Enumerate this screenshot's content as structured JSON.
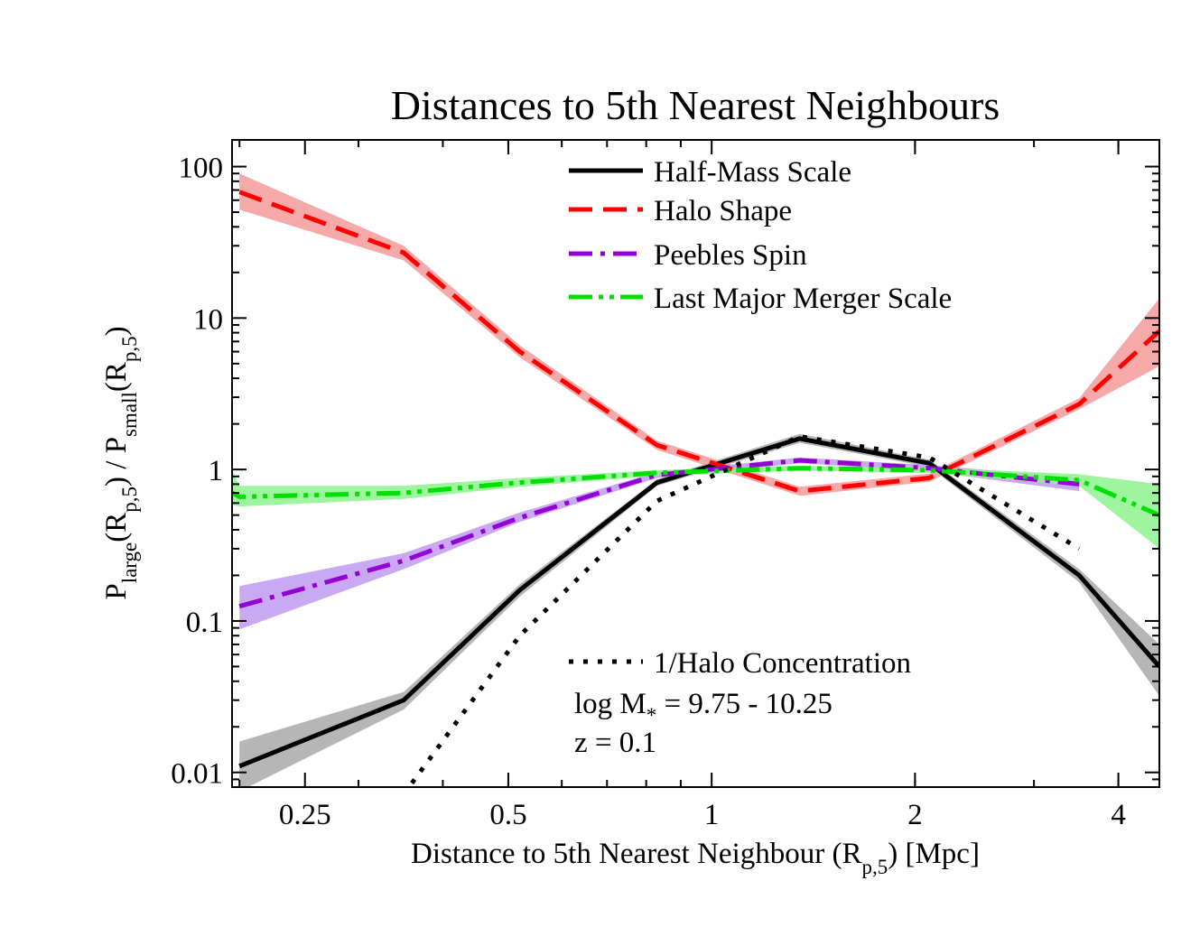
{
  "chart_data": {
    "type": "line",
    "title": "Distances to 5th Nearest Neighbours",
    "xlabel": {
      "main": "Distance to 5th Nearest Neighbour (R",
      "sub": "p,5",
      "tail": ") [Mpc]"
    },
    "ylabel": {
      "p1": "P",
      "sub1": "large",
      "p2": "(R",
      "sub2": "p,5",
      "p3": ") / P",
      "sub3": "small",
      "p4": "(R",
      "sub4": "p,5",
      "p5": ")"
    },
    "xscale": "log",
    "yscale": "log",
    "xlim": [
      0.195,
      4.6
    ],
    "ylim": [
      0.008,
      150
    ],
    "xticks": [
      {
        "value": 0.25,
        "label": "0.25"
      },
      {
        "value": 0.5,
        "label": "0.5"
      },
      {
        "value": 1,
        "label": "1"
      },
      {
        "value": 2,
        "label": "2"
      },
      {
        "value": 4,
        "label": "4"
      }
    ],
    "yticks": [
      {
        "value": 0.01,
        "label": "0.01"
      },
      {
        "value": 0.1,
        "label": "0.1"
      },
      {
        "value": 1,
        "label": "1"
      },
      {
        "value": 10,
        "label": "10"
      },
      {
        "value": 100,
        "label": "100"
      }
    ],
    "grid": false,
    "legend_position": "top-right",
    "series": [
      {
        "name": "Half-Mass Scale",
        "color": "#000000",
        "band_color": "#a9a9a9",
        "dash": "solid",
        "x": [
          0.2,
          0.35,
          0.52,
          0.83,
          1.35,
          2.1,
          3.5,
          4.6
        ],
        "y": [
          0.011,
          0.03,
          0.16,
          0.82,
          1.6,
          1.1,
          0.2,
          0.05
        ],
        "y_low": [
          0.0075,
          0.026,
          0.145,
          0.78,
          1.5,
          1.04,
          0.18,
          0.032
        ],
        "y_high": [
          0.016,
          0.034,
          0.175,
          0.86,
          1.72,
          1.16,
          0.22,
          0.07
        ]
      },
      {
        "name": "Halo Shape",
        "color": "#ff0000",
        "band_color": "#f39a9a",
        "dash": "long-dash",
        "x": [
          0.2,
          0.35,
          0.52,
          0.83,
          1.35,
          2.1,
          3.5,
          4.6
        ],
        "y": [
          68,
          27,
          6,
          1.45,
          0.72,
          0.88,
          2.7,
          8.2
        ],
        "y_low": [
          52,
          24,
          5.5,
          1.35,
          0.67,
          0.83,
          2.5,
          4.8
        ],
        "y_high": [
          90,
          30,
          6.6,
          1.55,
          0.77,
          0.94,
          2.95,
          13.5
        ]
      },
      {
        "name": "Peebles Spin",
        "color": "#9400d3",
        "band_color": "#c09af0",
        "dash": "dash-dot",
        "x": [
          0.2,
          0.35,
          0.52,
          0.83,
          1.35,
          2.1,
          3.5
        ],
        "y": [
          0.125,
          0.25,
          0.48,
          0.92,
          1.15,
          1.02,
          0.8
        ],
        "y_low": [
          0.088,
          0.22,
          0.45,
          0.88,
          1.1,
          0.97,
          0.72
        ],
        "y_high": [
          0.17,
          0.28,
          0.52,
          0.96,
          1.2,
          1.07,
          0.88
        ]
      },
      {
        "name": "Last Major Merger Scale",
        "color": "#00e000",
        "band_color": "#8ef28e",
        "dash": "dash-dot-dot",
        "x": [
          0.19,
          0.2,
          0.35,
          0.52,
          0.83,
          1.35,
          2.1,
          3.5,
          4.6
        ],
        "y": [
          0.75,
          0.66,
          0.7,
          0.82,
          0.95,
          1.02,
          0.99,
          0.85,
          0.5
        ],
        "y_low": [
          0.6,
          0.57,
          0.64,
          0.77,
          0.91,
          0.98,
          0.95,
          0.78,
          0.3
        ],
        "y_high": [
          1.3,
          0.78,
          0.78,
          0.88,
          0.99,
          1.06,
          1.03,
          0.93,
          0.8
        ]
      },
      {
        "name": "1/Halo Concentration",
        "color": "#000000",
        "band_color": null,
        "dash": "dotted",
        "x": [
          0.36,
          0.52,
          0.83,
          1.35,
          2.1,
          3.5
        ],
        "y": [
          0.0085,
          0.08,
          0.62,
          1.65,
          1.2,
          0.3
        ],
        "y_low": null,
        "y_high": null
      }
    ],
    "annotations": {
      "stellar_mass": {
        "prefix": "log M",
        "sub": "*",
        "suffix": " = 9.75 - 10.25"
      },
      "redshift": "z = 0.1"
    }
  }
}
